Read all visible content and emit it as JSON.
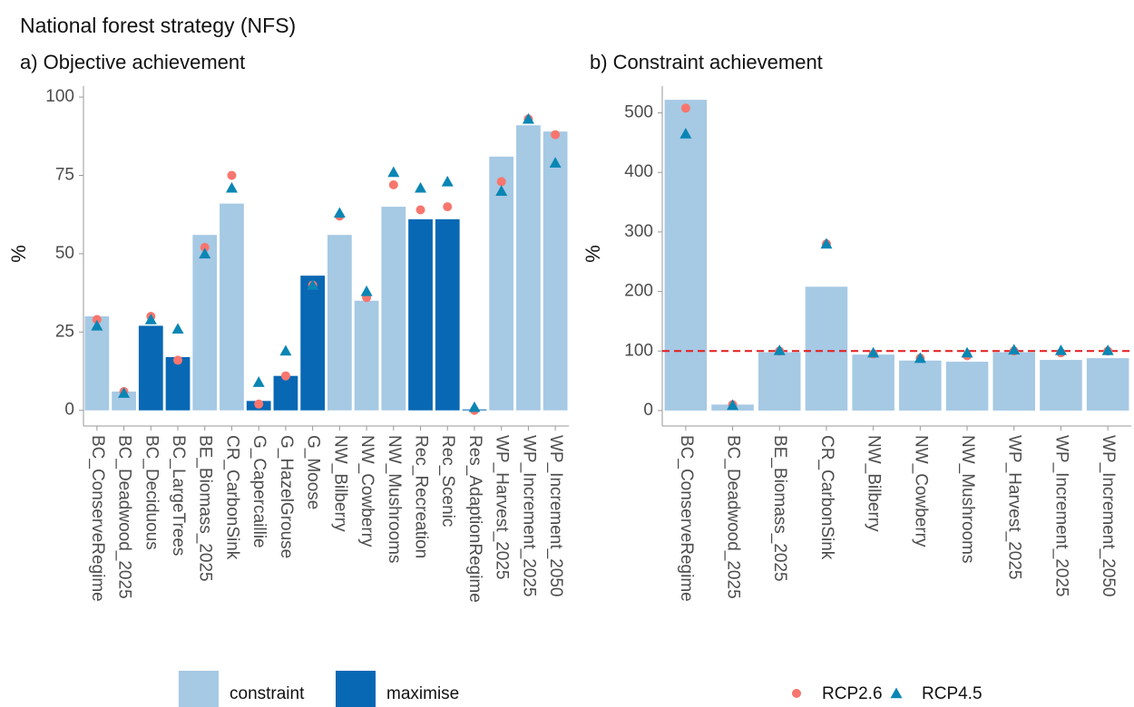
{
  "title": "National forest strategy (NFS)",
  "legend": "bottom",
  "chart_data": [
    {
      "type": "bar",
      "subtitle": "a) Objective achievement",
      "ylabel": "%",
      "categories": [
        "BC_ConserveRegime",
        "BC_Deadwood_2025",
        "BC_Deciduous",
        "BC_LargeTrees",
        "BE_Biomass_2025",
        "CR_CarbonSink",
        "G_Capercaillie",
        "G_HazelGrouse",
        "G_Moose",
        "NW_Bilberry",
        "NW_Cowberry",
        "NW_Mushrooms",
        "Rec_Recreation",
        "Rec_Scenic",
        "Res_AdaptionRegime",
        "WP_Harvest_2025",
        "WP_Increment_2025",
        "WP_Increment_2050"
      ],
      "ylim": [
        -5,
        103.5
      ],
      "yticks": [
        0,
        25,
        50,
        75,
        100
      ],
      "grid": false,
      "series": [
        {
          "name": "constraint",
          "kind": "bar",
          "color": "#a6c9e4",
          "values": [
            30,
            6,
            null,
            null,
            56,
            66,
            null,
            null,
            null,
            56,
            35,
            65,
            null,
            null,
            null,
            81,
            91,
            89
          ]
        },
        {
          "name": "maximise",
          "kind": "bar",
          "color": "#0868b4",
          "values": [
            null,
            null,
            27,
            17,
            null,
            null,
            3,
            11,
            43,
            null,
            null,
            null,
            61,
            61,
            0.3,
            null,
            null,
            null
          ]
        },
        {
          "name": "RCP2.6",
          "kind": "point",
          "marker": "circle",
          "color": "#f8766d",
          "values": [
            29,
            6,
            30,
            16,
            52,
            75,
            2,
            11,
            40,
            62,
            36,
            72,
            64,
            65,
            0,
            73,
            93,
            88
          ]
        },
        {
          "name": "RCP4.5",
          "kind": "point",
          "marker": "triangle",
          "color": "#0a86b4",
          "values": [
            27,
            5.5,
            29,
            26,
            50,
            71,
            9,
            19,
            40,
            63,
            38,
            76,
            71,
            73,
            1,
            70,
            93,
            79
          ]
        }
      ]
    },
    {
      "type": "bar",
      "subtitle": "b) Constraint achievement",
      "ylabel": "%",
      "categories": [
        "BC_ConserveRegime",
        "BC_Deadwood_2025",
        "BE_Biomass_2025",
        "CR_CarbonSink",
        "NW_Bilberry",
        "NW_Cowberry",
        "NW_Mushrooms",
        "WP_Harvest_2025",
        "WP_Increment_2025",
        "WP_Increment_2050"
      ],
      "ylim": [
        -26,
        545
      ],
      "yticks": [
        0,
        100,
        200,
        300,
        400,
        500
      ],
      "grid": false,
      "reference_line": {
        "value": 100,
        "color": "#e41a1c",
        "style": "dashed"
      },
      "series": [
        {
          "name": "constraint",
          "kind": "bar",
          "color": "#a6c9e4",
          "values": [
            522,
            10,
            98,
            208,
            94,
            84,
            82,
            98,
            85,
            88
          ]
        },
        {
          "name": "RCP2.6",
          "kind": "point",
          "marker": "circle",
          "color": "#f8766d",
          "values": [
            508,
            10,
            100,
            280,
            95,
            88,
            92,
            100,
            97,
            100
          ]
        },
        {
          "name": "RCP4.5",
          "kind": "point",
          "marker": "triangle",
          "color": "#0a86b4",
          "values": [
            465,
            9,
            101,
            280,
            97,
            88,
            97,
            102,
            101,
            101
          ]
        }
      ]
    }
  ]
}
